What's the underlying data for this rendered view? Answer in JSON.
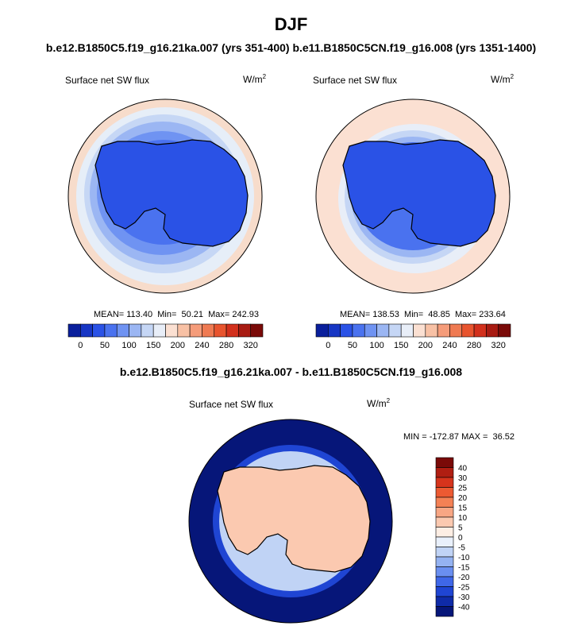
{
  "main_title": "DJF",
  "top_subtitle_left": "b.e12.B1850C5.f19_g16.21ka.007 (yrs 351-400)",
  "top_subtitle_right": "b.e11.B1850C5CN.f19_g16.008 (yrs 1351-1400)",
  "diff_title": "b.e12.B1850C5.f19_g16.21ka.007 - b.e11.B1850C5CN.f19_g16.008",
  "chart_data": [
    {
      "type": "heatmap",
      "projection": "south-polar-stereographic",
      "title": "Surface net SW flux",
      "units": "W/m",
      "units_exp": "2",
      "mean_label": "MEAN= 113.40",
      "min_label": "Min=  50.21",
      "max_label": "Max= 242.93",
      "mean": 113.4,
      "min": 50.21,
      "max": 242.93,
      "colorbar_ticks": [
        "0",
        "50",
        "100",
        "150",
        "200",
        "240",
        "280",
        "320"
      ],
      "colorbar_colors": [
        "#0a1f9c",
        "#1736c4",
        "#2a52e6",
        "#4a72ef",
        "#6f93f2",
        "#9bb6f3",
        "#c5d6f5",
        "#e8eef8",
        "#fbe0d2",
        "#f8c1a5",
        "#f59c7a",
        "#ef7a52",
        "#e8542e",
        "#d2301c",
        "#a81b12",
        "#7a0a08"
      ]
    },
    {
      "type": "heatmap",
      "projection": "south-polar-stereographic",
      "title": "Surface net SW flux",
      "units": "W/m",
      "units_exp": "2",
      "mean_label": "MEAN= 138.53",
      "min_label": "Min=  48.85",
      "max_label": "Max= 233.64",
      "mean": 138.53,
      "min": 48.85,
      "max": 233.64,
      "colorbar_ticks": [
        "0",
        "50",
        "100",
        "150",
        "200",
        "240",
        "280",
        "320"
      ],
      "colorbar_colors": [
        "#0a1f9c",
        "#1736c4",
        "#2a52e6",
        "#4a72ef",
        "#6f93f2",
        "#9bb6f3",
        "#c5d6f5",
        "#e8eef8",
        "#fbe0d2",
        "#f8c1a5",
        "#f59c7a",
        "#ef7a52",
        "#e8542e",
        "#d2301c",
        "#a81b12",
        "#7a0a08"
      ]
    },
    {
      "type": "heatmap",
      "projection": "south-polar-stereographic",
      "title": "Surface net SW flux",
      "units": "W/m",
      "units_exp": "2",
      "minmax_label": "MIN = -172.87 MAX =  36.52",
      "min": -172.87,
      "max": 36.52,
      "colorbar_ticks": [
        "40",
        "30",
        "25",
        "20",
        "15",
        "10",
        "5",
        "0",
        "-5",
        "-10",
        "-15",
        "-20",
        "-25",
        "-30",
        "-40"
      ],
      "colorbar_colors": [
        "#7a0a08",
        "#b01e12",
        "#d6341c",
        "#ec5a32",
        "#f48155",
        "#f8a684",
        "#fbc9b0",
        "#fdeee4",
        "#e9f0fb",
        "#c0d3f5",
        "#94b2f1",
        "#6a8ff0",
        "#3f67e8",
        "#1f45d3",
        "#0f2ba8",
        "#061679"
      ]
    }
  ]
}
